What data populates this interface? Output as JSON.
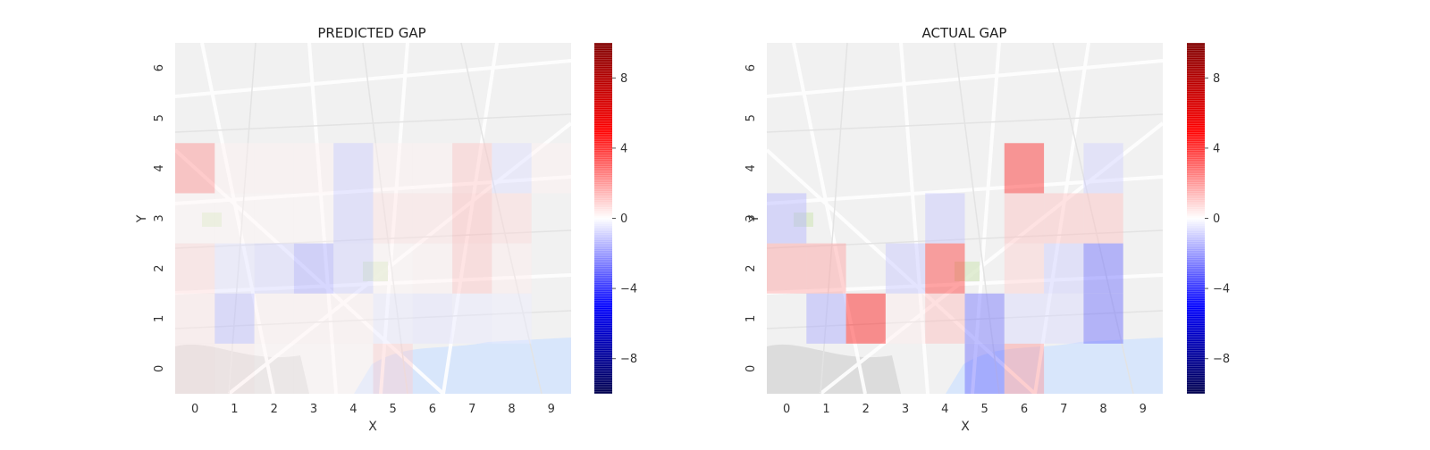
{
  "chart_data": [
    {
      "type": "heatmap",
      "title": "PREDICTED GAP",
      "xlabel": "X",
      "ylabel": "Y",
      "x_ticks": [
        "0",
        "1",
        "2",
        "3",
        "4",
        "5",
        "6",
        "7",
        "8",
        "9"
      ],
      "y_ticks": [
        "0",
        "1",
        "2",
        "3",
        "4",
        "5",
        "6"
      ],
      "xlim": [
        -0.5,
        9.5
      ],
      "ylim": [
        -0.5,
        6.5
      ],
      "grid": false,
      "background": "street map",
      "colorbar": {
        "cmap": "seismic",
        "vmin": -10,
        "vmax": 10,
        "ticks": [
          "8",
          "4",
          "0",
          "−4",
          "−8"
        ]
      },
      "values": [
        [
          0.5,
          0.4,
          0.2,
          0.2,
          0.2,
          1.0,
          0,
          0,
          0,
          0
        ],
        [
          0.5,
          -1.4,
          0.3,
          0.3,
          0.3,
          -0.5,
          -0.6,
          -0.5,
          -0.4,
          0
        ],
        [
          0.8,
          -0.6,
          -0.9,
          -1.8,
          -1.0,
          0.2,
          0.3,
          1.2,
          0.4,
          0
        ],
        [
          0.2,
          0.2,
          0.2,
          0.2,
          -1.1,
          0.6,
          0.6,
          1.4,
          0.8,
          0
        ],
        [
          2.4,
          0.3,
          0.3,
          0.3,
          -1.1,
          0.3,
          0.3,
          1.2,
          -0.7,
          0.3
        ],
        [
          0,
          0,
          0,
          0,
          0,
          0,
          0,
          0,
          0,
          0
        ],
        [
          0,
          0,
          0,
          0,
          0,
          0,
          0,
          0,
          0,
          0
        ]
      ]
    },
    {
      "type": "heatmap",
      "title": "ACTUAL GAP",
      "xlabel": "X",
      "ylabel": "Y",
      "x_ticks": [
        "0",
        "1",
        "2",
        "3",
        "4",
        "5",
        "6",
        "7",
        "8",
        "9"
      ],
      "y_ticks": [
        "0",
        "1",
        "2",
        "3",
        "4",
        "5",
        "6"
      ],
      "xlim": [
        -0.5,
        9.5
      ],
      "ylim": [
        -0.5,
        6.5
      ],
      "grid": false,
      "background": "street map",
      "colorbar": {
        "cmap": "seismic",
        "vmin": -10,
        "vmax": 10,
        "ticks": [
          "8",
          "4",
          "0",
          "−4",
          "−8"
        ]
      },
      "values": [
        [
          0,
          0,
          0,
          0,
          0,
          -3.2,
          2.2,
          0,
          0,
          0
        ],
        [
          0,
          -1.8,
          5.0,
          0.4,
          1.4,
          -3.0,
          -0.8,
          -0.8,
          -3.2,
          0
        ],
        [
          2.0,
          2.0,
          0,
          -1.2,
          4.2,
          0,
          1.0,
          -1.1,
          -3.2,
          0
        ],
        [
          -1.6,
          0,
          0,
          0,
          -1.2,
          0,
          1.3,
          1.3,
          1.3,
          0
        ],
        [
          0,
          0,
          0,
          0,
          0,
          0,
          4.6,
          0,
          -1.0,
          0
        ],
        [
          0,
          0,
          0,
          0,
          0,
          0,
          0,
          0,
          0,
          0
        ],
        [
          0,
          0,
          0,
          0,
          0,
          0,
          0,
          0,
          0,
          0
        ]
      ]
    }
  ]
}
